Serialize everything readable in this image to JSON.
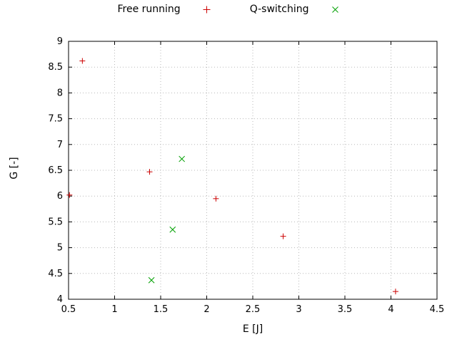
{
  "chart_data": {
    "type": "scatter",
    "title": "",
    "xlabel": "E [J]",
    "ylabel": "G [-]",
    "xlim": [
      0.5,
      4.5
    ],
    "ylim": [
      4,
      9
    ],
    "xticks": [
      0.5,
      1,
      1.5,
      2,
      2.5,
      3,
      3.5,
      4,
      4.5
    ],
    "xtick_labels": [
      "0.5",
      "1",
      "1.5",
      "2",
      "2.5",
      "3",
      "3.5",
      "4",
      "4.5"
    ],
    "yticks": [
      4,
      4.5,
      5,
      5.5,
      6,
      6.5,
      7,
      7.5,
      8,
      8.5,
      9
    ],
    "ytick_labels": [
      "4",
      "4.5",
      "5",
      "5.5",
      "6",
      "6.5",
      "7",
      "7.5",
      "8",
      "8.5",
      "9"
    ],
    "grid": true,
    "legend_position": "top-center",
    "series": [
      {
        "name": "Free running",
        "marker": "plus",
        "color": "#cc0000",
        "points": [
          [
            0.51,
            6.02
          ],
          [
            0.65,
            8.62
          ],
          [
            1.38,
            6.47
          ],
          [
            2.1,
            5.95
          ],
          [
            2.83,
            5.22
          ],
          [
            4.05,
            4.15
          ]
        ]
      },
      {
        "name": "Q-switching",
        "marker": "cross",
        "color": "#00a000",
        "points": [
          [
            1.4,
            4.37
          ],
          [
            1.63,
            5.35
          ],
          [
            1.73,
            6.72
          ]
        ]
      }
    ]
  }
}
